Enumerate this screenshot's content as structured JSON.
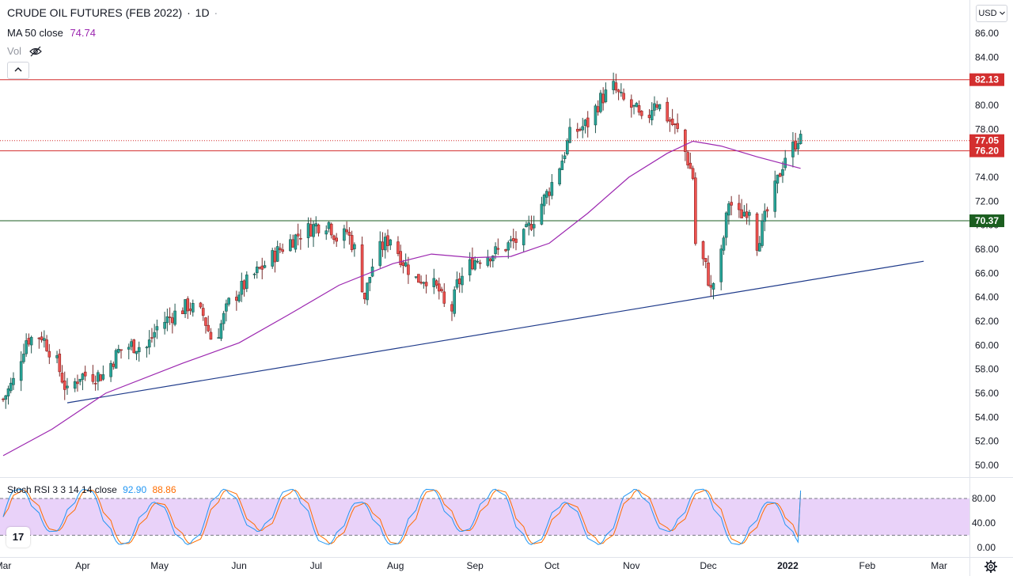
{
  "header": {
    "symbol": "CRUDE OIL FUTURES (FEB 2022)",
    "interval": "1D",
    "sep1": "·",
    "sep2": "·"
  },
  "ma": {
    "label": "MA 50 close",
    "value": "74.74"
  },
  "vol": {
    "label": "Vol",
    "icon": "eye-hidden-icon"
  },
  "collapse_icon": "chevron-up-icon",
  "currency": "USD",
  "currency_icon": "chevron-down-icon",
  "logo_text": "17",
  "settings_icon": "gear-icon",
  "stoch_rsi": {
    "label": "Stoch RSI 3 3 14 14 close",
    "k_value": "92.90",
    "d_value": "88.86",
    "upper": 80,
    "lower": 20,
    "ticks": [
      "80.00",
      "40.00",
      "0.00"
    ],
    "k_color": "#2196f3",
    "d_color": "#ff6d00",
    "band_color": "#e1c3f7"
  },
  "colors": {
    "up": "#26a69a",
    "up_wick": "#20554d",
    "down": "#ef5350",
    "ma": "#9c27b0",
    "trendline": "#1e3a8a",
    "resistance": "#d32f2f",
    "support": "#1b5e20"
  },
  "chart_data": {
    "type": "candlestick",
    "x_axis": [
      "Mar",
      "Apr",
      "May",
      "Jun",
      "Jul",
      "Aug",
      "Sep",
      "Oct",
      "Nov",
      "Dec",
      "2022",
      "Feb",
      "Mar"
    ],
    "y_ticks": [
      50,
      52,
      54,
      56,
      58,
      60,
      62,
      64,
      66,
      68,
      70,
      72,
      74,
      76,
      78,
      80,
      82,
      84,
      86
    ],
    "ylim": [
      49,
      87.5
    ],
    "last_price": "77.05",
    "horizontal_lines": [
      {
        "value": 82.13,
        "label": "82.13",
        "color": "#d32f2f"
      },
      {
        "value": 76.2,
        "label": "76.20",
        "color": "#d32f2f"
      },
      {
        "value": 70.37,
        "label": "70.37",
        "color": "#1b5e20"
      }
    ],
    "trendline": {
      "start": [
        "2021-03-26",
        55.2
      ],
      "end": [
        "2022-02-23",
        67.0
      ]
    },
    "series": [
      {
        "name": "Price",
        "kind": "candles",
        "anchors": [
          [
            "2021-03-01",
            55.5
          ],
          [
            "2021-03-05",
            57.0
          ],
          [
            "2021-03-10",
            60.5
          ],
          [
            "2021-03-16",
            60.8
          ],
          [
            "2021-03-22",
            58.5
          ],
          [
            "2021-03-26",
            56.0
          ],
          [
            "2021-03-31",
            57.5
          ],
          [
            "2021-04-09",
            57.5
          ],
          [
            "2021-04-15",
            59.5
          ],
          [
            "2021-04-20",
            60.0
          ],
          [
            "2021-04-26",
            59.8
          ],
          [
            "2021-04-30",
            61.5
          ],
          [
            "2021-05-06",
            62.5
          ],
          [
            "2021-05-12",
            63.3
          ],
          [
            "2021-05-18",
            62.5
          ],
          [
            "2021-05-22",
            60.0
          ],
          [
            "2021-05-28",
            63.5
          ],
          [
            "2021-06-03",
            65.0
          ],
          [
            "2021-06-10",
            66.5
          ],
          [
            "2021-06-17",
            68.0
          ],
          [
            "2021-06-24",
            69.2
          ],
          [
            "2021-07-01",
            70.0
          ],
          [
            "2021-07-06",
            70.2
          ],
          [
            "2021-07-10",
            68.5
          ],
          [
            "2021-07-13",
            69.5
          ],
          [
            "2021-07-16",
            68.0
          ],
          [
            "2021-07-20",
            64.0
          ],
          [
            "2021-07-24",
            67.5
          ],
          [
            "2021-07-30",
            69.0
          ],
          [
            "2021-08-04",
            67.0
          ],
          [
            "2021-08-09",
            65.5
          ],
          [
            "2021-08-13",
            65.6
          ],
          [
            "2021-08-18",
            64.5
          ],
          [
            "2021-08-22",
            62.0
          ],
          [
            "2021-08-25",
            65.0
          ],
          [
            "2021-08-31",
            67.0
          ],
          [
            "2021-09-05",
            67.5
          ],
          [
            "2021-09-10",
            67.8
          ],
          [
            "2021-09-15",
            68.5
          ],
          [
            "2021-09-20",
            69.0
          ],
          [
            "2021-09-25",
            71.0
          ],
          [
            "2021-09-30",
            73.0
          ],
          [
            "2021-10-05",
            75.5
          ],
          [
            "2021-10-08",
            77.5
          ],
          [
            "2021-10-15",
            78.5
          ],
          [
            "2021-10-20",
            80.5
          ],
          [
            "2021-10-25",
            81.5
          ],
          [
            "2021-10-28",
            80.5
          ],
          [
            "2021-11-03",
            79.5
          ],
          [
            "2021-11-06",
            78.0
          ],
          [
            "2021-11-10",
            80.5
          ],
          [
            "2021-11-15",
            79.0
          ],
          [
            "2021-11-20",
            77.5
          ],
          [
            "2021-11-25",
            74.0
          ],
          [
            "2021-11-26",
            68.5
          ],
          [
            "2021-11-30",
            66.5
          ],
          [
            "2021-12-02",
            64.5
          ],
          [
            "2021-12-06",
            67.5
          ],
          [
            "2021-12-09",
            72.0
          ],
          [
            "2021-12-13",
            70.8
          ],
          [
            "2021-12-17",
            71.5
          ],
          [
            "2021-12-20",
            68.5
          ],
          [
            "2021-12-23",
            70.5
          ],
          [
            "2021-12-27",
            73.0
          ],
          [
            "2021-12-31",
            75.8
          ],
          [
            "2022-01-03",
            76.5
          ],
          [
            "2022-01-05",
            77.3
          ],
          [
            "2022-01-06",
            77.05
          ]
        ]
      },
      {
        "name": "MA 50 close",
        "kind": "line",
        "anchors": [
          [
            "2021-03-01",
            50.8
          ],
          [
            "2021-03-20",
            53.0
          ],
          [
            "2021-04-10",
            56.0
          ],
          [
            "2021-05-10",
            58.5
          ],
          [
            "2021-06-01",
            60.2
          ],
          [
            "2021-06-20",
            62.5
          ],
          [
            "2021-07-10",
            65.0
          ],
          [
            "2021-07-31",
            66.8
          ],
          [
            "2021-08-15",
            67.6
          ],
          [
            "2021-08-31",
            67.3
          ],
          [
            "2021-09-15",
            67.4
          ],
          [
            "2021-09-30",
            68.5
          ],
          [
            "2021-10-15",
            71.0
          ],
          [
            "2021-10-31",
            74.0
          ],
          [
            "2021-11-15",
            76.0
          ],
          [
            "2021-11-25",
            77.0
          ],
          [
            "2021-12-06",
            76.6
          ],
          [
            "2021-12-20",
            75.7
          ],
          [
            "2022-01-06",
            74.74
          ]
        ]
      },
      {
        "name": "K",
        "kind": "oscillator",
        "value": 92.9
      },
      {
        "name": "D",
        "kind": "oscillator",
        "value": 88.86
      }
    ]
  }
}
